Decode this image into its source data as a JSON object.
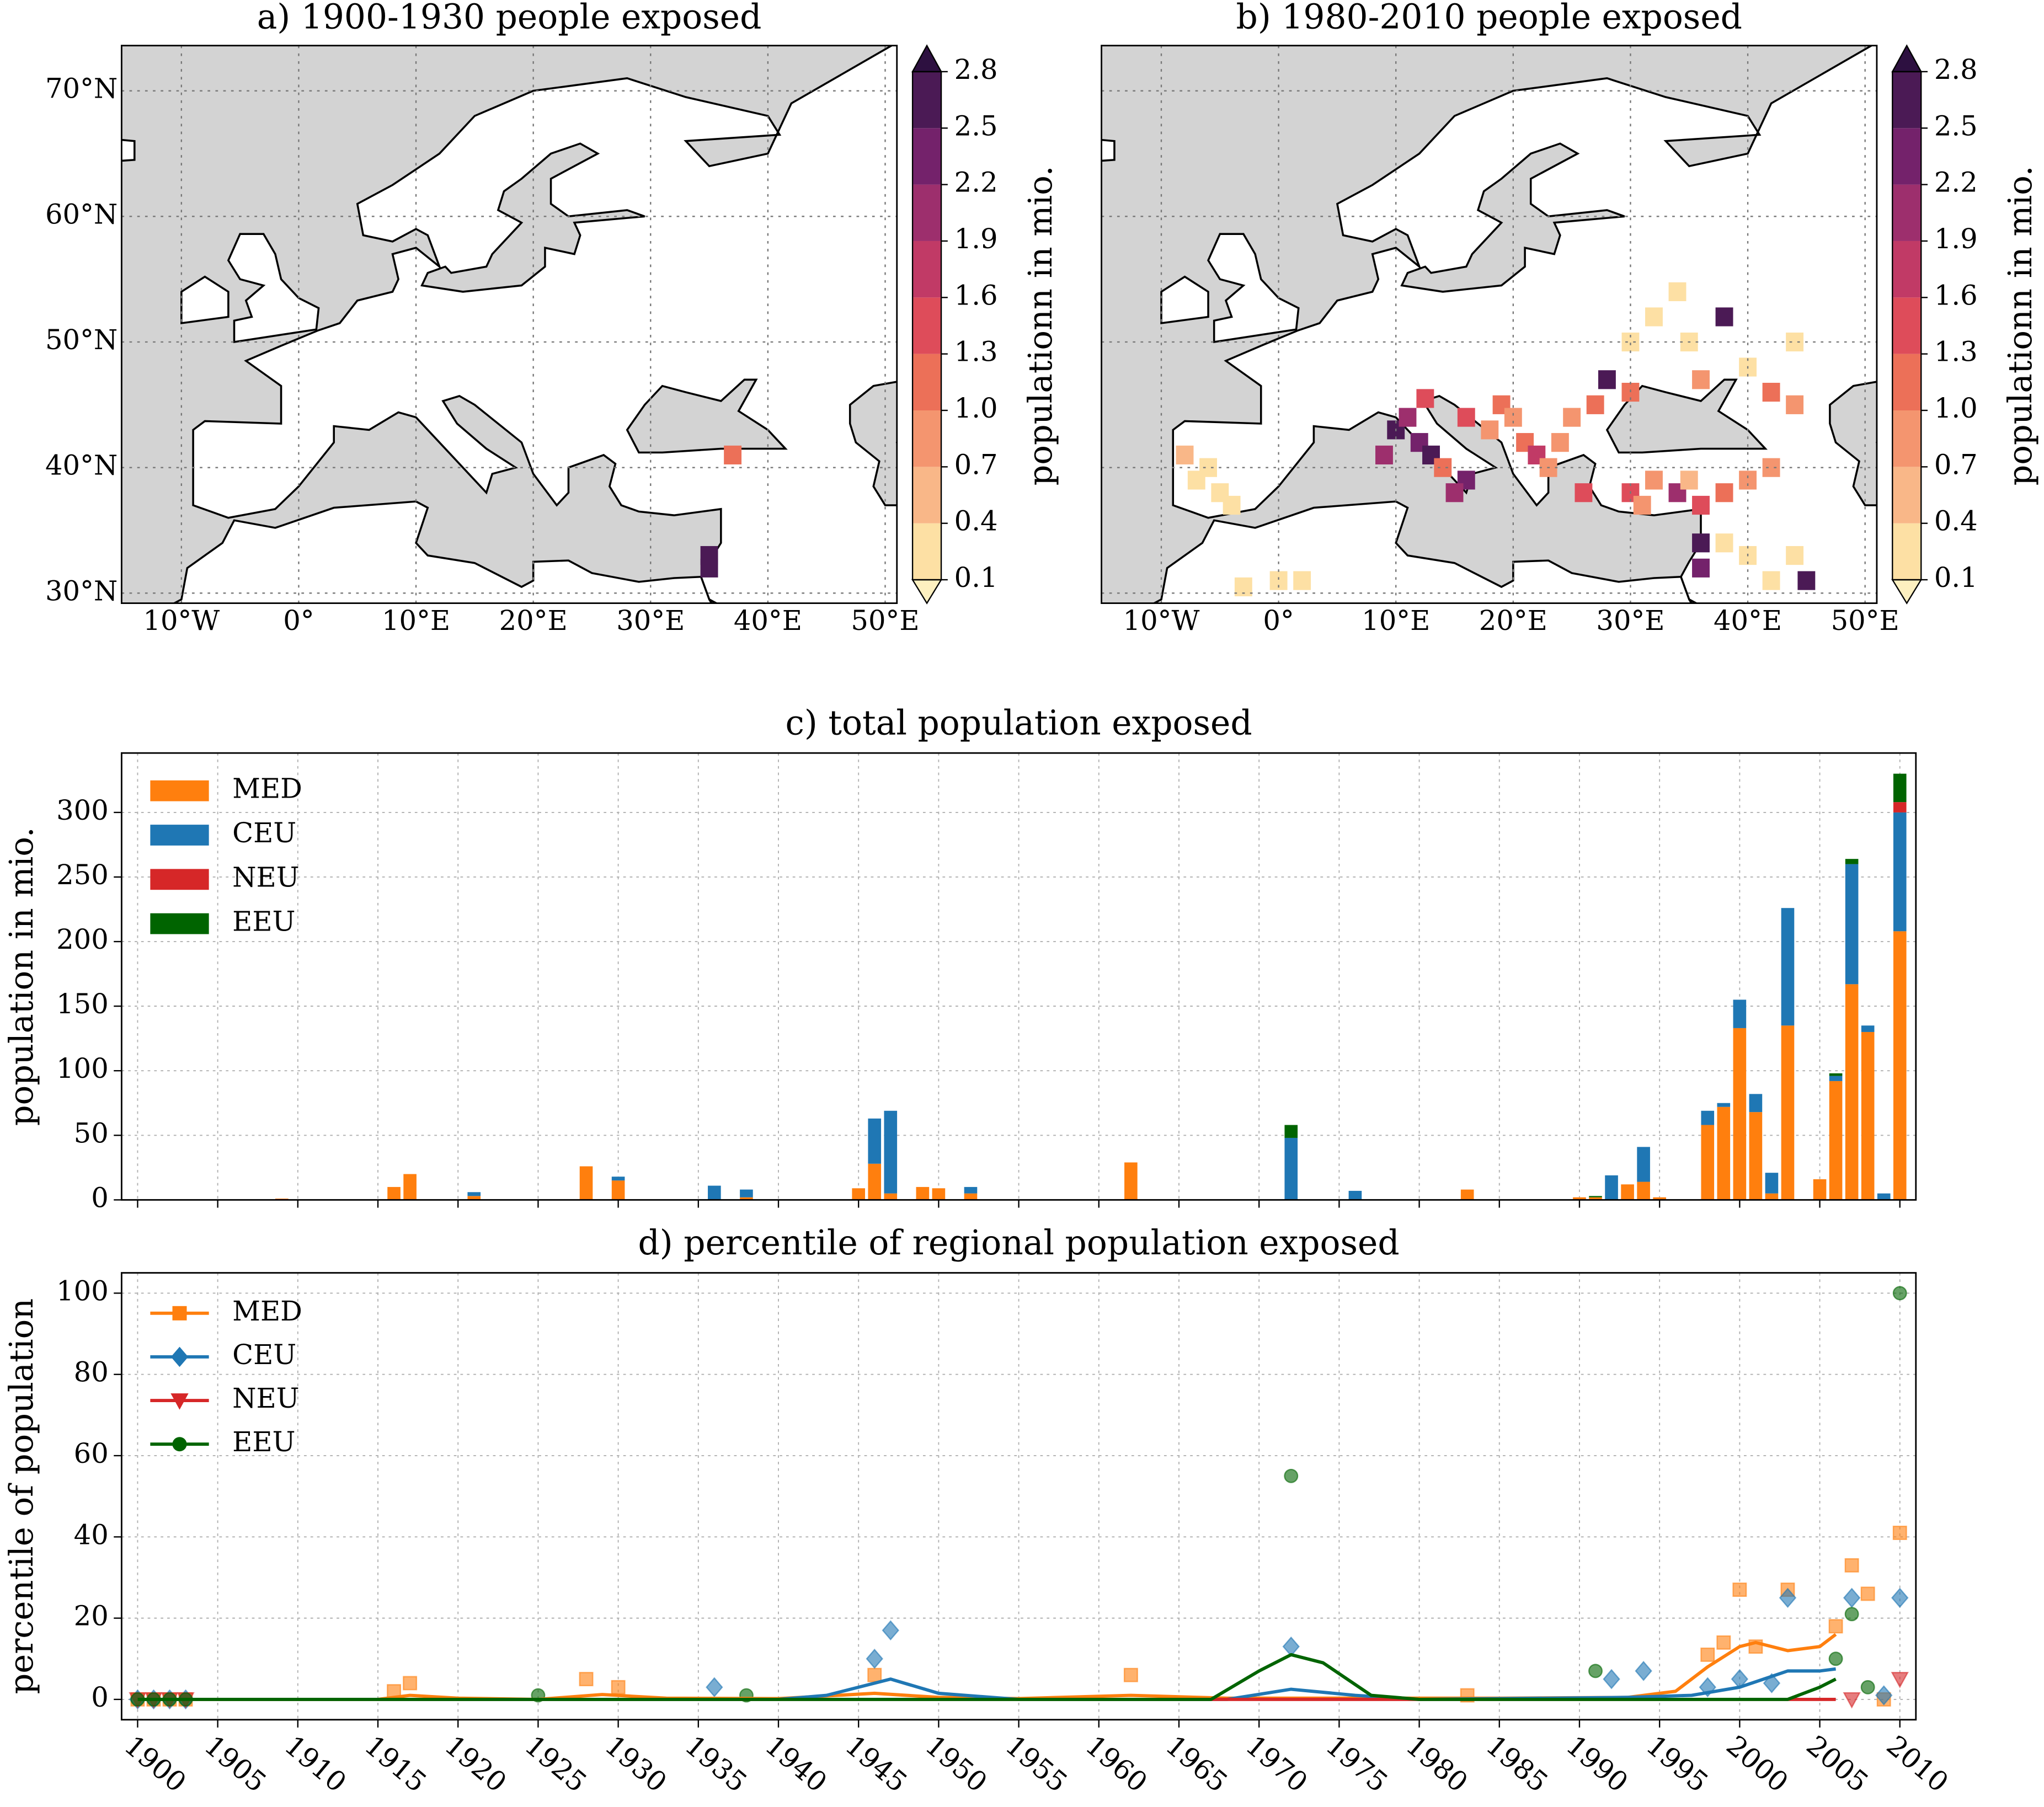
{
  "chart_data": [
    {
      "type": "heatmap",
      "title": "a) 1900-1930 people exposed",
      "xlim": [
        -15.1,
        51
      ],
      "ylim": [
        29.2,
        73.6
      ],
      "xticks": [
        {
          "value": -10,
          "label": "10°W"
        },
        {
          "value": 0,
          "label": "0°"
        },
        {
          "value": 10,
          "label": "10°E"
        },
        {
          "value": 20,
          "label": "20°E"
        },
        {
          "value": 30,
          "label": "30°E"
        },
        {
          "value": 40,
          "label": "40°E"
        },
        {
          "value": 50,
          "label": "50°E"
        }
      ],
      "yticks": [
        {
          "value": 30,
          "label": "30°N"
        },
        {
          "value": 40,
          "label": "40°N"
        },
        {
          "value": 50,
          "label": "50°N"
        },
        {
          "value": 60,
          "label": "60°N"
        },
        {
          "value": 70,
          "label": "70°N"
        }
      ],
      "cells": [
        [
          37,
          41,
          1.3
        ],
        [
          35,
          33,
          2.8
        ],
        [
          35,
          32,
          2.6
        ]
      ],
      "colorbar": {
        "label": "populationn in mio.",
        "ticks": [
          0.1,
          0.4,
          0.7,
          {
            "value": 1,
            "label": "1.0"
          },
          1.3,
          1.6,
          1.9,
          2.2,
          2.5,
          2.8
        ],
        "colors": [
          "#fde0a4",
          "#f9b788",
          "#f4956f",
          "#ec7058",
          "#de4c5a",
          "#c13a66",
          "#9d2f6d",
          "#74226b",
          "#4b1a55"
        ],
        "under": "#fdf0c0",
        "over": "#2d1040"
      }
    },
    {
      "type": "heatmap",
      "title": "b) 1980-2010 people exposed",
      "xlim": [
        -15.1,
        51
      ],
      "ylim": [
        29.2,
        73.6
      ],
      "xticks": [
        {
          "value": -10,
          "label": "10°W"
        },
        {
          "value": 0,
          "label": "0°"
        },
        {
          "value": 10,
          "label": "10°E"
        },
        {
          "value": 20,
          "label": "20°E"
        },
        {
          "value": 30,
          "label": "30°E"
        },
        {
          "value": 40,
          "label": "40°E"
        },
        {
          "value": 50,
          "label": "50°E"
        }
      ],
      "yticks": [
        30,
        40,
        50,
        60,
        70
      ],
      "show_yticklabels": false,
      "cells": [
        [
          -7,
          39,
          0.3
        ],
        [
          -6,
          40,
          0.2
        ],
        [
          -5,
          38,
          0.4
        ],
        [
          -8,
          41,
          0.5
        ],
        [
          -4,
          37,
          0.2
        ],
        [
          -3,
          30.5,
          0.3
        ],
        [
          0,
          31,
          0.2
        ],
        [
          2,
          31,
          0.1
        ],
        [
          10,
          43,
          2.6
        ],
        [
          11,
          44,
          2.0
        ],
        [
          12,
          42,
          2.5
        ],
        [
          13,
          41,
          2.8
        ],
        [
          14,
          40,
          1.2
        ],
        [
          16,
          39,
          2.3
        ],
        [
          15,
          38,
          2.0
        ],
        [
          9,
          41,
          2.2
        ],
        [
          12.5,
          45.5,
          1.5
        ],
        [
          16,
          44,
          1.5
        ],
        [
          18,
          43,
          1.0
        ],
        [
          19,
          45,
          1.1
        ],
        [
          20,
          44,
          0.8
        ],
        [
          21,
          42,
          1.3
        ],
        [
          22,
          41,
          1.8
        ],
        [
          23,
          40,
          0.9
        ],
        [
          24,
          42,
          1.0
        ],
        [
          25,
          44,
          0.9
        ],
        [
          27,
          45,
          1.3
        ],
        [
          28,
          47,
          2.6
        ],
        [
          30,
          46,
          1.2
        ],
        [
          26,
          38,
          1.5
        ],
        [
          30,
          38,
          1.6
        ],
        [
          32,
          39,
          1.0
        ],
        [
          34,
          38,
          2.2
        ],
        [
          36,
          37,
          1.6
        ],
        [
          38,
          38,
          1.3
        ],
        [
          31,
          37,
          0.9
        ],
        [
          35,
          39,
          0.7
        ],
        [
          40,
          39,
          1.0
        ],
        [
          42,
          40,
          0.8
        ],
        [
          36,
          34,
          2.8
        ],
        [
          36,
          32,
          2.5
        ],
        [
          38,
          34,
          0.3
        ],
        [
          40,
          33,
          0.2
        ],
        [
          42,
          31,
          0.1
        ],
        [
          44,
          33,
          0.3
        ],
        [
          45,
          31,
          2.8
        ],
        [
          30,
          50,
          0.4
        ],
        [
          32,
          52,
          0.3
        ],
        [
          35,
          50,
          0.2
        ],
        [
          38,
          52,
          2.6
        ],
        [
          40,
          48,
          0.3
        ],
        [
          42,
          46,
          1.3
        ],
        [
          36,
          47,
          0.9
        ],
        [
          44,
          45,
          0.8
        ],
        [
          44,
          50,
          0.1
        ],
        [
          34,
          54,
          0.2
        ]
      ],
      "colorbar": {
        "label": "populationn in mio.",
        "ticks": [
          0.1,
          0.4,
          0.7,
          {
            "value": 1,
            "label": "1.0"
          },
          1.3,
          1.6,
          1.9,
          2.2,
          2.5,
          2.8
        ],
        "colors": [
          "#fde0a4",
          "#f9b788",
          "#f4956f",
          "#ec7058",
          "#de4c5a",
          "#c13a66",
          "#9d2f6d",
          "#74226b",
          "#4b1a55"
        ],
        "under": "#fdf0c0",
        "over": "#2d1040"
      }
    },
    {
      "type": "bar",
      "stacked": true,
      "title": "c) total population exposed",
      "ylabel": "population in mio.",
      "xlim": [
        1899,
        2011
      ],
      "xticks": [
        1900,
        1905,
        1910,
        1915,
        1920,
        1925,
        1930,
        1935,
        1940,
        1945,
        1950,
        1955,
        1960,
        1965,
        1970,
        1975,
        1980,
        1985,
        1990,
        1995,
        2000,
        2005,
        2010
      ],
      "ylim": [
        0,
        346
      ],
      "yticks": [
        0,
        50,
        100,
        150,
        200,
        250,
        300
      ],
      "grid": true,
      "legend": "upper left",
      "x": [
        1900,
        1909,
        1916,
        1917,
        1921,
        1928,
        1930,
        1936,
        1938,
        1945,
        1946,
        1947,
        1949,
        1950,
        1952,
        1962,
        1972,
        1976,
        1983,
        1990,
        1991,
        1992,
        1993,
        1994,
        1995,
        1998,
        1999,
        2000,
        2001,
        2002,
        2003,
        2005,
        2006,
        2007,
        2008,
        2009,
        2010
      ],
      "series": [
        {
          "name": "MED",
          "color": "#ff7f0e",
          "values": [
            0.5,
            1,
            10,
            20,
            3,
            26,
            15,
            0,
            2,
            9,
            28,
            5,
            10,
            9,
            5,
            29,
            0,
            0,
            8,
            2,
            2,
            0,
            12,
            14,
            2,
            58,
            72,
            133,
            68,
            5,
            135,
            16,
            92,
            167,
            130,
            0,
            208
          ]
        },
        {
          "name": "CEU",
          "color": "#1f77b4",
          "values": [
            0,
            0,
            0,
            0,
            3,
            0,
            3,
            11,
            6,
            0,
            35,
            64,
            0,
            0,
            5,
            0,
            48,
            7,
            0,
            0,
            0,
            19,
            0,
            27,
            0,
            11,
            3,
            22,
            14,
            16,
            91,
            0,
            4,
            93,
            5,
            5,
            92
          ]
        },
        {
          "name": "NEU",
          "color": "#d62728",
          "values": [
            0,
            0,
            0,
            0,
            0,
            0,
            0,
            0,
            0,
            0,
            0,
            0,
            0,
            0,
            0,
            0,
            0,
            0,
            0,
            0,
            0,
            0,
            0,
            0,
            0,
            0,
            0,
            0,
            0,
            0,
            0,
            0,
            0,
            0,
            0,
            0,
            8
          ]
        },
        {
          "name": "EEU",
          "color": "#006400",
          "values": [
            0,
            0,
            0,
            0,
            0,
            0,
            0,
            0,
            0,
            0,
            0,
            0,
            0,
            0,
            0,
            0,
            10,
            0,
            0,
            0,
            1,
            0,
            0,
            0,
            0,
            0,
            0,
            0,
            0,
            0,
            0,
            0,
            2,
            4,
            0,
            0,
            22
          ]
        }
      ]
    },
    {
      "type": "line",
      "title": "d) percentile of regional population exposed",
      "ylabel": "percentile of population",
      "xlim": [
        1899,
        2011
      ],
      "xticks": [
        1900,
        1905,
        1910,
        1915,
        1920,
        1925,
        1930,
        1935,
        1940,
        1945,
        1950,
        1955,
        1960,
        1965,
        1970,
        1975,
        1980,
        1985,
        1990,
        1995,
        2000,
        2005,
        2010
      ],
      "ylim": [
        -5,
        105
      ],
      "yticks": [
        0,
        20,
        40,
        60,
        80,
        100
      ],
      "grid": true,
      "legend": "upper left",
      "series": [
        {
          "name": "MED",
          "color": "#ff7f0e",
          "marker": "square",
          "x": [
            1900,
            1901,
            1902,
            1903,
            1916,
            1917,
            1928,
            1930,
            1946,
            1962,
            1983,
            1998,
            1999,
            2000,
            2001,
            2003,
            2006,
            2007,
            2008,
            2009,
            2010
          ],
          "values": [
            0,
            0,
            0,
            0,
            2,
            4,
            5,
            3,
            6,
            6,
            1,
            11,
            14,
            27,
            13,
            27,
            18,
            33,
            26,
            0,
            41
          ],
          "smooth": {
            "x": [
              1900,
              1915,
              1917,
              1920,
              1925,
              1929,
              1933,
              1940,
              1946,
              1950,
              1955,
              1962,
              1968,
              1975,
              1985,
              1993,
              1996,
              1998,
              2000,
              2001,
              2003,
              2005,
              2006
            ],
            "values": [
              0,
              0,
              1,
              0.3,
              0,
              1.2,
              0.3,
              0.2,
              1.5,
              0.5,
              0.2,
              1,
              0.3,
              0.3,
              0.3,
              0.5,
              2,
              8,
              13,
              14,
              12,
              13,
              16
            ]
          }
        },
        {
          "name": "CEU",
          "color": "#1f77b4",
          "marker": "diamond",
          "x": [
            1900,
            1901,
            1902,
            1903,
            1936,
            1946,
            1947,
            1972,
            1992,
            1994,
            1998,
            2000,
            2002,
            2003,
            2007,
            2009,
            2010
          ],
          "values": [
            0,
            0,
            0,
            0,
            3,
            10,
            17,
            13,
            5,
            7,
            3,
            5,
            4,
            25,
            25,
            1,
            25
          ],
          "smooth": {
            "x": [
              1900,
              1940,
              1943,
              1947,
              1950,
              1955,
              1968,
              1972,
              1976,
              1980,
              1993,
              1997,
              2000,
              2003,
              2005,
              2006
            ],
            "values": [
              0,
              0,
              1,
              5,
              1.5,
              0,
              0,
              2.5,
              1,
              0,
              0.5,
              1,
              3,
              7,
              7,
              7.5
            ]
          }
        },
        {
          "name": "NEU",
          "color": "#d62728",
          "marker": "triangle",
          "x": [
            1900,
            1901,
            1902,
            1903,
            2007,
            2010
          ],
          "values": [
            0,
            0,
            0,
            0,
            0,
            5
          ],
          "smooth": {
            "x": [
              1900,
              2006
            ],
            "values": [
              0,
              0
            ]
          }
        },
        {
          "name": "EEU",
          "color": "#006400",
          "marker": "circle",
          "x": [
            1900,
            1901,
            1902,
            1903,
            1925,
            1938,
            1972,
            1991,
            2006,
            2007,
            2008,
            2010
          ],
          "values": [
            0,
            0,
            0,
            0,
            1,
            1,
            55,
            7,
            10,
            21,
            3,
            100
          ],
          "smooth": {
            "x": [
              1900,
              1967,
              1970,
              1972,
              1974,
              1977,
              1980,
              2003,
              2005,
              2006
            ],
            "values": [
              0,
              0,
              7,
              11,
              9,
              1,
              0,
              0,
              3,
              5
            ]
          }
        }
      ]
    }
  ]
}
